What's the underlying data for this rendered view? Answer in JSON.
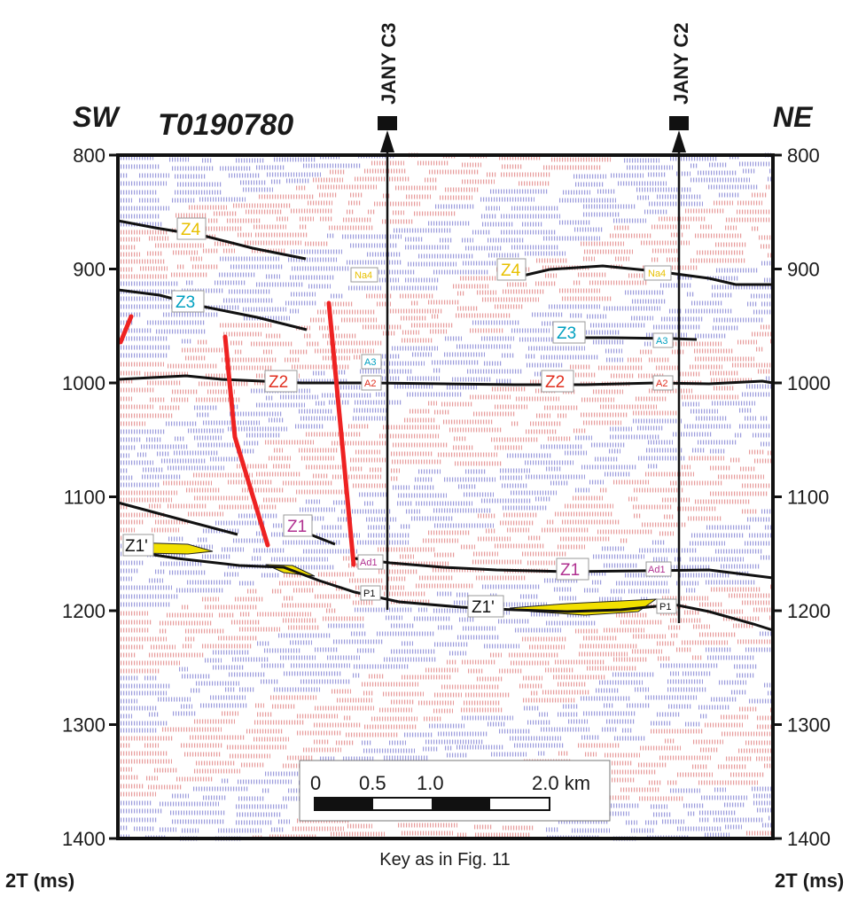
{
  "profile": {
    "title": "T0190780",
    "left_direction": "SW",
    "right_direction": "NE",
    "axis_unit_left": "2T (ms)",
    "axis_unit_right": "2T (ms)",
    "time_ticks": [
      "800",
      "900",
      "1000",
      "1100",
      "1200",
      "1300",
      "1400"
    ],
    "caption": "Key as in Fig. 11"
  },
  "wells": [
    {
      "name": "JANY C3"
    },
    {
      "name": "JANY C2"
    }
  ],
  "horizon_labels": {
    "z4_left": "Z4",
    "z4_right": "Z4",
    "z3_left": "Z3",
    "z3_right": "Z3",
    "z2_left": "Z2",
    "z2_right": "Z2",
    "z1_left": "Z1",
    "z1_right": "Z1",
    "z1p_left": "Z1'",
    "z1p_right": "Z1'"
  },
  "well_markers": {
    "c3_na4": "Na4",
    "c3_a3": "A3",
    "c3_a2": "A2",
    "c3_ad1": "Ad1",
    "c3_p1": "P1",
    "c2_na4": "Na4",
    "c2_a3": "A3",
    "c2_a2": "A2",
    "c2_ad1": "Ad1",
    "c2_p1": "P1"
  },
  "scale_bar": {
    "labels": [
      "0",
      "0.5",
      "1.0",
      "2.0 km"
    ]
  },
  "colors": {
    "seismic_positive": "#e38a8a",
    "seismic_negative": "#8a8ad6",
    "fault": "#ee2222",
    "horizon": "#111111",
    "salt_fill": "#f2e000",
    "z4": "#e8c000",
    "z3": "#00a0c0",
    "z2": "#e03020",
    "z1": "#b03090"
  }
}
